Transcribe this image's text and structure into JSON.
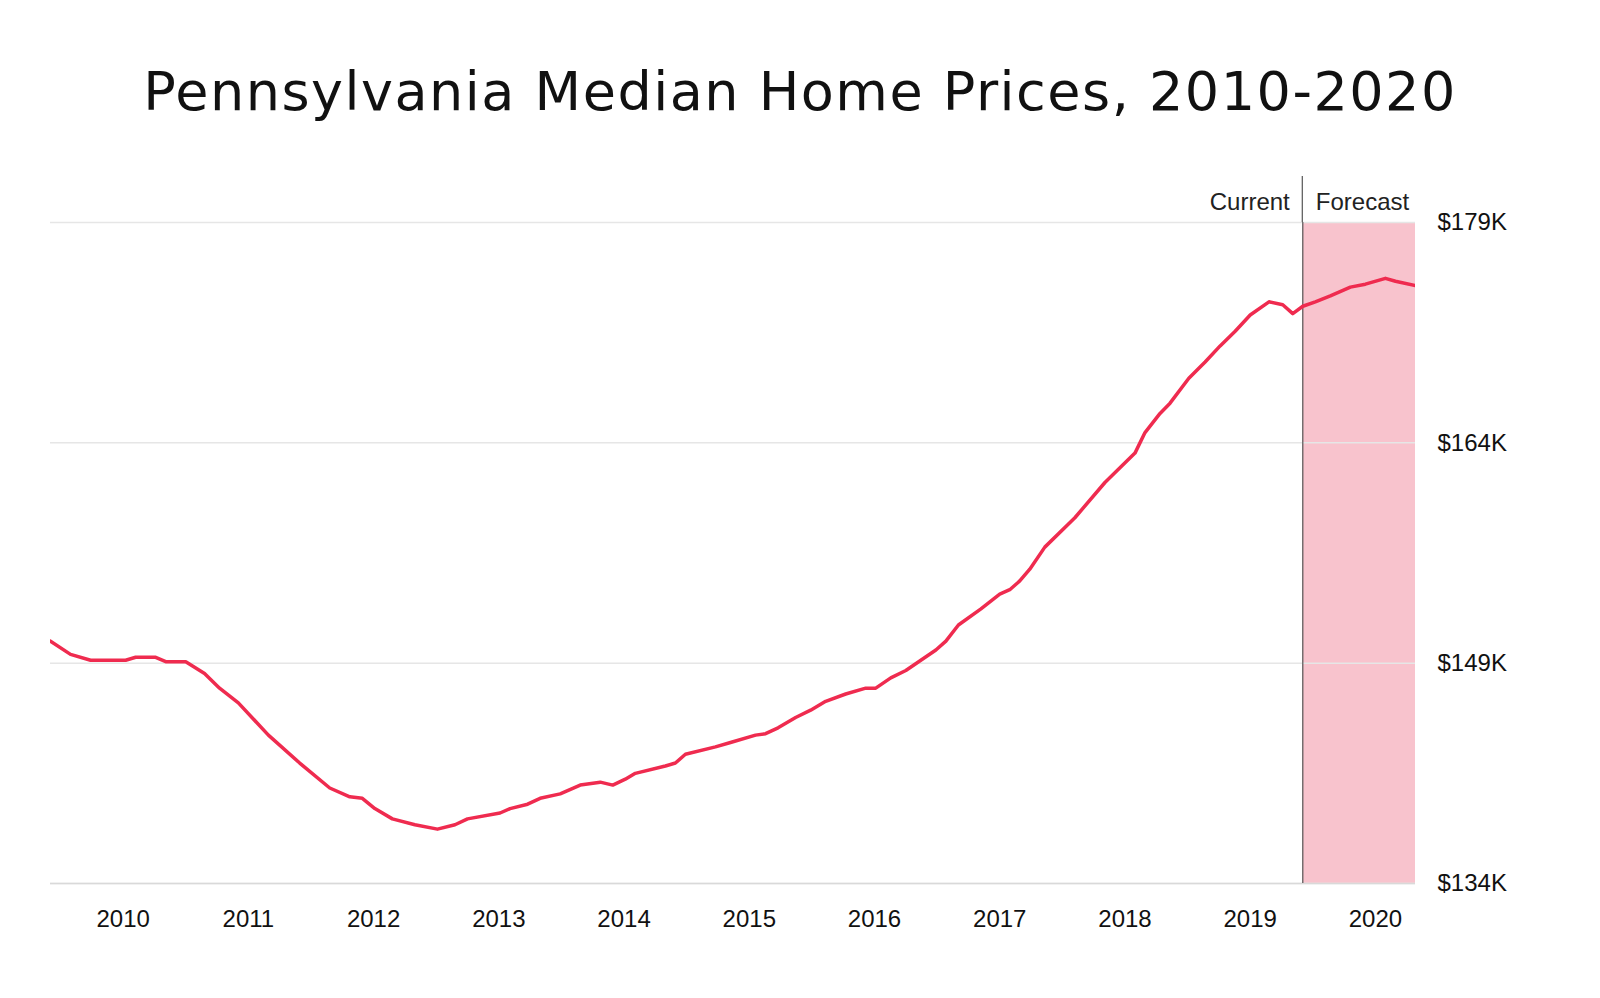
{
  "chart_data": {
    "type": "line",
    "title": "Pennsylvania Median Home Prices, 2010-2020",
    "color": "#ef2b4f",
    "x": [
      2009.42,
      2009.58,
      2009.74,
      2010.02,
      2010.1,
      2010.26,
      2010.34,
      2010.5,
      2010.65,
      2010.77,
      2010.92,
      2011.16,
      2011.41,
      2011.65,
      2011.81,
      2011.91,
      2012.01,
      2012.15,
      2012.33,
      2012.51,
      2012.65,
      2012.75,
      2013.01,
      2013.09,
      2013.23,
      2013.33,
      2013.49,
      2013.65,
      2013.81,
      2013.91,
      2014.01,
      2014.09,
      2014.33,
      2014.41,
      2014.49,
      2014.73,
      2014.85,
      2015.05,
      2015.13,
      2015.23,
      2015.37,
      2015.49,
      2015.61,
      2015.77,
      2015.93,
      2016.01,
      2016.13,
      2016.25,
      2016.49,
      2016.57,
      2016.67,
      2016.85,
      2017.0,
      2017.08,
      2017.16,
      2017.24,
      2017.36,
      2017.6,
      2017.84,
      2018.08,
      2018.16,
      2018.28,
      2018.36,
      2018.51,
      2018.64,
      2018.76,
      2018.88,
      2019.0,
      2019.15,
      2019.26,
      2019.34,
      2019.42,
      2019.52,
      2019.64,
      2019.8,
      2019.92,
      2020.08,
      2020.16,
      2020.32
    ],
    "values": [
      150500,
      149600,
      149200,
      149200,
      149400,
      149400,
      149100,
      149100,
      148300,
      147300,
      146300,
      144100,
      142200,
      140500,
      139900,
      139800,
      139100,
      138400,
      138000,
      137700,
      138000,
      138400,
      138800,
      139100,
      139400,
      139800,
      140100,
      140700,
      140900,
      140700,
      141100,
      141500,
      142000,
      142200,
      142800,
      143300,
      143600,
      144100,
      144200,
      144600,
      145300,
      145800,
      146400,
      146900,
      147300,
      147300,
      148000,
      148500,
      149900,
      150500,
      151600,
      152700,
      153700,
      154000,
      154600,
      155400,
      156900,
      158900,
      161300,
      163300,
      164700,
      166000,
      166700,
      168400,
      169500,
      170600,
      171600,
      172700,
      173600,
      173400,
      172800,
      173300,
      173600,
      174000,
      174600,
      174800,
      175200,
      175000,
      174700
    ],
    "xlim": [
      2009.42,
      2020.32
    ],
    "xticks": [
      2010,
      2011,
      2012,
      2013,
      2014,
      2015,
      2016,
      2017,
      2018,
      2019,
      2020
    ],
    "ylim": [
      134000,
      179000
    ],
    "yticks": [
      {
        "value": 134000,
        "label": "$134K"
      },
      {
        "value": 149000,
        "label": "$149K"
      },
      {
        "value": 164000,
        "label": "$164K"
      },
      {
        "value": 179000,
        "label": "$179K"
      }
    ],
    "grid": true,
    "current": {
      "label": "Current"
    },
    "forecast": {
      "x": 2019.42,
      "label": "Forecast",
      "color": "#f8c3cd"
    }
  }
}
